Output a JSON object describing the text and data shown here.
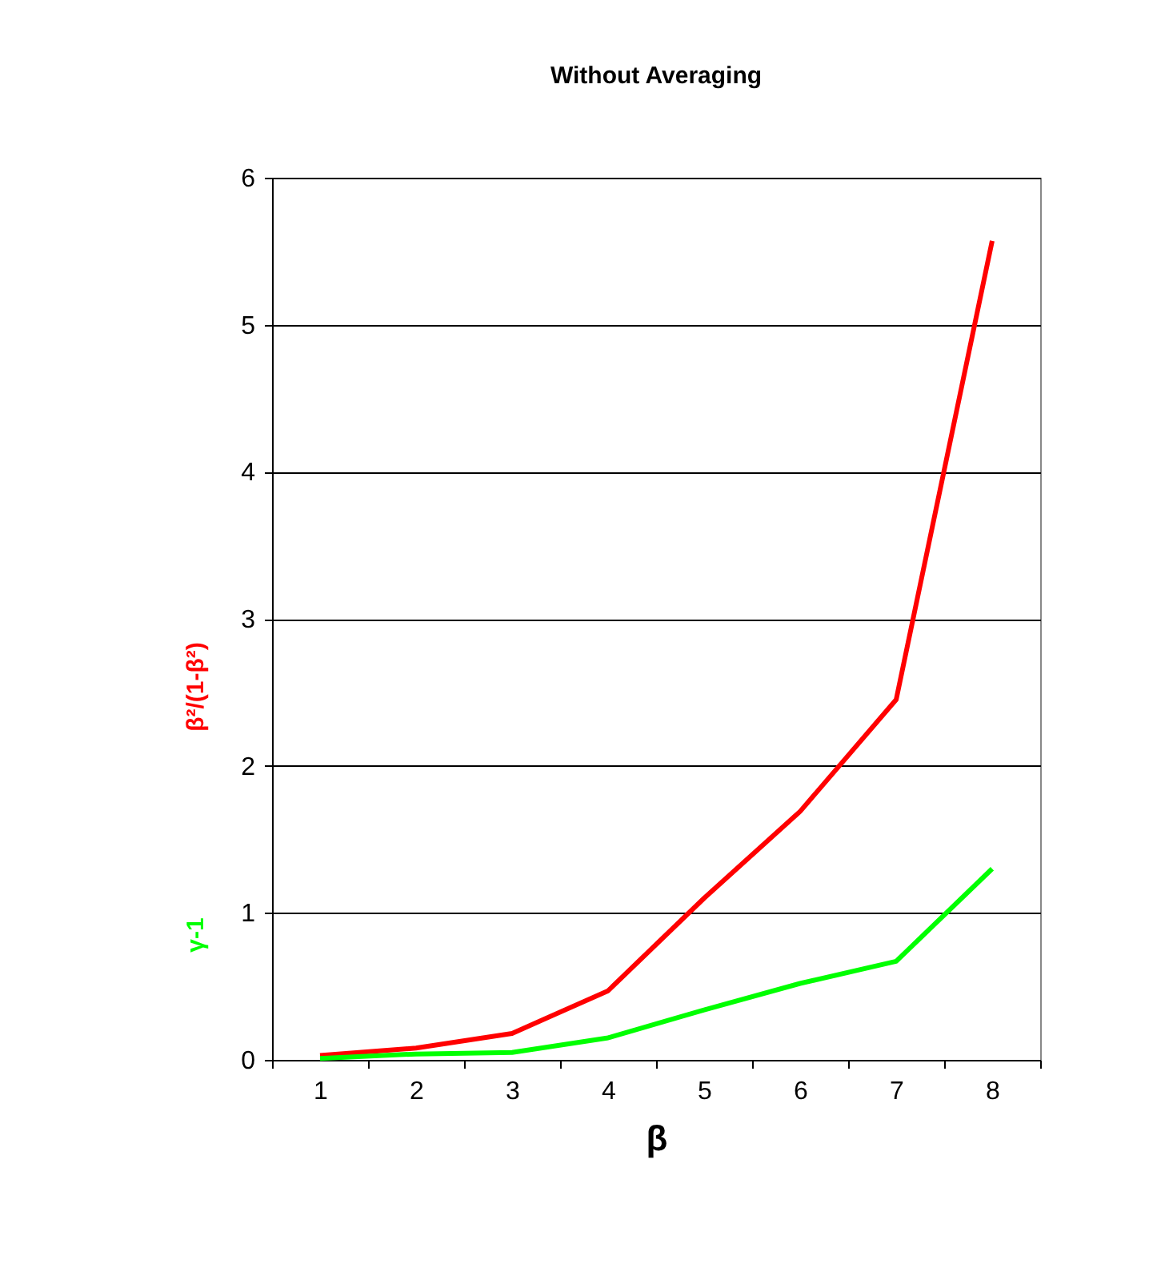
{
  "chart_data": {
    "type": "line",
    "title": "Without Averaging",
    "xlabel": "β",
    "categories": [
      "1",
      "2",
      "3",
      "4",
      "5",
      "6",
      "7",
      "8"
    ],
    "series": [
      {
        "name": "β²/(1-β²)",
        "color": "#ff0000",
        "values": [
          0.03,
          0.08,
          0.18,
          0.47,
          1.1,
          1.69,
          2.45,
          5.57
        ]
      },
      {
        "name": "γ-1",
        "color": "#00ff00",
        "values": [
          0.01,
          0.04,
          0.05,
          0.15,
          0.34,
          0.52,
          0.67,
          1.3
        ]
      }
    ],
    "ylim": [
      0,
      6
    ],
    "yticks": [
      0,
      1,
      2,
      3,
      4,
      5,
      6
    ],
    "grid": "y"
  }
}
